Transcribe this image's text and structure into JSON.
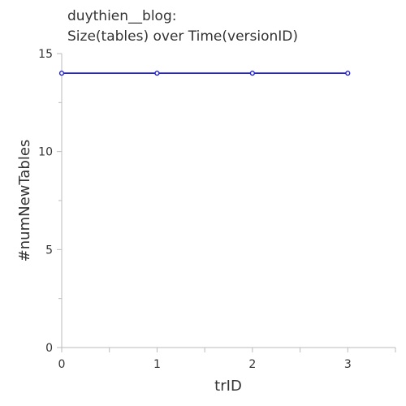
{
  "chart_data": {
    "type": "line",
    "title_lines": [
      "duythien__blog:",
      "Size(tables) over Time(versionID)"
    ],
    "xlabel": "trID",
    "ylabel": "#numNewTables",
    "x": [
      0,
      1,
      2,
      3
    ],
    "xlim": [
      0,
      3.5
    ],
    "ylim": [
      0,
      15
    ],
    "x_ticks": [
      0,
      1,
      2,
      3
    ],
    "x_minor_ticks": [
      0.5,
      1.5,
      2.5,
      3.5
    ],
    "y_ticks": [
      0,
      5,
      10,
      15
    ],
    "y_minor_ticks": [
      2.5,
      7.5,
      12.5
    ],
    "grid": false,
    "legend": "none",
    "series": [
      {
        "values": [
          14,
          14,
          14,
          14
        ],
        "color": "#1f1fd6"
      }
    ]
  }
}
